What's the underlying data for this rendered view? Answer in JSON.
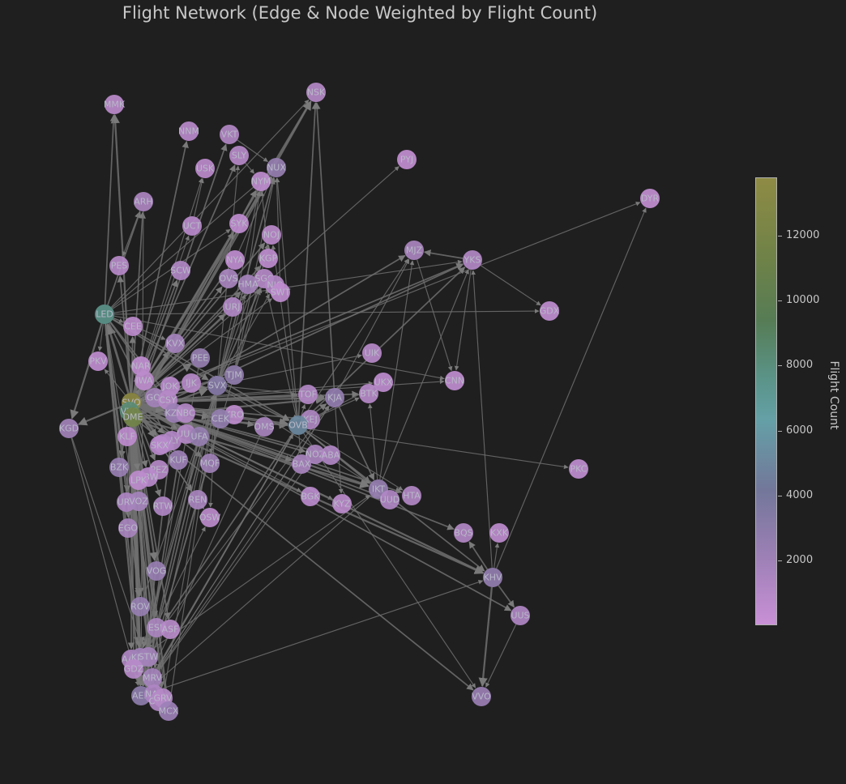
{
  "title": "Flight Network (Edge & Node Weighted by Flight Count)",
  "colorbar": {
    "label": "Flight Count",
    "ticks": [
      "2000",
      "4000",
      "6000",
      "8000",
      "10000",
      "12000"
    ],
    "colors": [
      "#c990d6",
      "#9d80b6",
      "#73779a",
      "#64a0a6",
      "#5a9285",
      "#567c55",
      "#6f8248",
      "#8e8b44"
    ]
  },
  "chart_data": {
    "type": "network",
    "title": "Flight Network (Edge & Node Weighted by Flight Count)",
    "colorbar_label": "Flight Count",
    "colorbar_range": [
      0,
      13800
    ],
    "nodes": [
      {
        "id": "MMK",
        "flights": 600
      },
      {
        "id": "NSK",
        "flights": 900
      },
      {
        "id": "NNM",
        "flights": 700
      },
      {
        "id": "VKT",
        "flights": 1000
      },
      {
        "id": "SLY",
        "flights": 800
      },
      {
        "id": "NUX",
        "flights": 2300
      },
      {
        "id": "USK",
        "flights": 600
      },
      {
        "id": "NYM",
        "flights": 500
      },
      {
        "id": "PYJ",
        "flights": 300
      },
      {
        "id": "DYR",
        "flights": 300
      },
      {
        "id": "ARH",
        "flights": 1300
      },
      {
        "id": "UCT",
        "flights": 700
      },
      {
        "id": "SYK",
        "flights": 400
      },
      {
        "id": "NOJ",
        "flights": 600
      },
      {
        "id": "MJZ",
        "flights": 1400
      },
      {
        "id": "YKS",
        "flights": 1000
      },
      {
        "id": "PES",
        "flights": 800
      },
      {
        "id": "KGP",
        "flights": 500
      },
      {
        "id": "NYA",
        "flights": 400
      },
      {
        "id": "SCW",
        "flights": 1100
      },
      {
        "id": "OVS",
        "flights": 1500
      },
      {
        "id": "SGC",
        "flights": 900
      },
      {
        "id": "HMA",
        "flights": 1600
      },
      {
        "id": "NJC",
        "flights": 1000
      },
      {
        "id": "SWT",
        "flights": 500
      },
      {
        "id": "URJ",
        "flights": 1100
      },
      {
        "id": "GDX",
        "flights": 400
      },
      {
        "id": "LED",
        "flights": 7500
      },
      {
        "id": "CEE",
        "flights": 600
      },
      {
        "id": "KVX",
        "flights": 1600
      },
      {
        "id": "UIK",
        "flights": 800
      },
      {
        "id": "PEE",
        "flights": 2300
      },
      {
        "id": "PKV",
        "flights": 400
      },
      {
        "id": "NAR",
        "flights": 400
      },
      {
        "id": "TJM",
        "flights": 2600
      },
      {
        "id": "UKX",
        "flights": 500
      },
      {
        "id": "CNN",
        "flights": 400
      },
      {
        "id": "IWA",
        "flights": 600
      },
      {
        "id": "JOK",
        "flights": 700
      },
      {
        "id": "IJK",
        "flights": 900
      },
      {
        "id": "SVX",
        "flights": 3000
      },
      {
        "id": "TOF",
        "flights": 1000
      },
      {
        "id": "KJA",
        "flights": 2400
      },
      {
        "id": "BTK",
        "flights": 800
      },
      {
        "id": "SVO",
        "flights": 13800
      },
      {
        "id": "GOJ",
        "flights": 1700
      },
      {
        "id": "CSY",
        "flights": 900
      },
      {
        "id": "VKO",
        "flights": 8500
      },
      {
        "id": "DME",
        "flights": 12000
      },
      {
        "id": "KZN",
        "flights": 2000
      },
      {
        "id": "NBC",
        "flights": 1000
      },
      {
        "id": "KRO",
        "flights": 600
      },
      {
        "id": "KEJ",
        "flights": 1300
      },
      {
        "id": "CEK",
        "flights": 2500
      },
      {
        "id": "OMS",
        "flights": 1500
      },
      {
        "id": "OVB",
        "flights": 4800
      },
      {
        "id": "KGD",
        "flights": 1700
      },
      {
        "id": "UUA",
        "flights": 1000
      },
      {
        "id": "UFA",
        "flights": 2300
      },
      {
        "id": "ULY",
        "flights": 1000
      },
      {
        "id": "ULV",
        "flights": 1100
      },
      {
        "id": "KLF",
        "flights": 500
      },
      {
        "id": "SKX",
        "flights": 700
      },
      {
        "id": "NOZ",
        "flights": 1400
      },
      {
        "id": "ABA",
        "flights": 1100
      },
      {
        "id": "KUF",
        "flights": 2000
      },
      {
        "id": "MQF",
        "flights": 1900
      },
      {
        "id": "BAX",
        "flights": 1500
      },
      {
        "id": "PKC",
        "flights": 400
      },
      {
        "id": "BZK",
        "flights": 2200
      },
      {
        "id": "PEZ",
        "flights": 900
      },
      {
        "id": "TBW",
        "flights": 700
      },
      {
        "id": "LPK",
        "flights": 600
      },
      {
        "id": "IKT",
        "flights": 2300
      },
      {
        "id": "HTA",
        "flights": 1000
      },
      {
        "id": "URS",
        "flights": 1200
      },
      {
        "id": "VOZ",
        "flights": 1600
      },
      {
        "id": "BGK",
        "flights": 700
      },
      {
        "id": "KYZ",
        "flights": 600
      },
      {
        "id": "UUD",
        "flights": 1100
      },
      {
        "id": "RTW",
        "flights": 1100
      },
      {
        "id": "REN",
        "flights": 1500
      },
      {
        "id": "OSW",
        "flights": 600
      },
      {
        "id": "EGO",
        "flights": 1500
      },
      {
        "id": "BQS",
        "flights": 1000
      },
      {
        "id": "KXK",
        "flights": 500
      },
      {
        "id": "KHV",
        "flights": 2400
      },
      {
        "id": "VOG",
        "flights": 2200
      },
      {
        "id": "UUS",
        "flights": 1100
      },
      {
        "id": "ROV",
        "flights": 2300
      },
      {
        "id": "ESL",
        "flights": 1400
      },
      {
        "id": "ASF",
        "flights": 800
      },
      {
        "id": "AAQ",
        "flights": 1200
      },
      {
        "id": "KRR",
        "flights": 1800
      },
      {
        "id": "STW",
        "flights": 1700
      },
      {
        "id": "GDZ",
        "flights": 800
      },
      {
        "id": "MRV",
        "flights": 1600
      },
      {
        "id": "AER",
        "flights": 2700
      },
      {
        "id": "NAL",
        "flights": 1200
      },
      {
        "id": "OGZ",
        "flights": 1100
      },
      {
        "id": "GRV",
        "flights": 900
      },
      {
        "id": "MCX",
        "flights": 2000
      },
      {
        "id": "VVO",
        "flights": 2100
      }
    ],
    "edges": [
      [
        "SVO",
        "MMK",
        3
      ],
      [
        "SVO",
        "NSK",
        3
      ],
      [
        "DME",
        "NSK",
        3
      ],
      [
        "SVO",
        "NNM",
        2
      ],
      [
        "LED",
        "ARH",
        2
      ],
      [
        "SVO",
        "ARH",
        2
      ],
      [
        "DME",
        "VKT",
        2
      ],
      [
        "SVO",
        "SLY",
        2
      ],
      [
        "DME",
        "NUX",
        2
      ],
      [
        "SVO",
        "NUX",
        2
      ],
      [
        "SVO",
        "USK",
        1
      ],
      [
        "DME",
        "NYM",
        2
      ],
      [
        "SVO",
        "PYJ",
        1
      ],
      [
        "SVO",
        "DYR",
        1
      ],
      [
        "SVO",
        "UCT",
        1
      ],
      [
        "SVO",
        "SYK",
        2
      ],
      [
        "SVO",
        "NOJ",
        2
      ],
      [
        "DME",
        "MJZ",
        2
      ],
      [
        "SVO",
        "YKS",
        2
      ],
      [
        "DME",
        "YKS",
        2
      ],
      [
        "LED",
        "GDX",
        1
      ],
      [
        "SVO",
        "KGP",
        2
      ],
      [
        "SVO",
        "NYA",
        2
      ],
      [
        "SVO",
        "SGC",
        2
      ],
      [
        "SVO",
        "HMA",
        2
      ],
      [
        "SVO",
        "SWT",
        1
      ],
      [
        "SVO",
        "URJ",
        2
      ],
      [
        "SVO",
        "OVS",
        2
      ],
      [
        "SVO",
        "SCW",
        2
      ],
      [
        "SVO",
        "KVX",
        2
      ],
      [
        "SVO",
        "PEE",
        3
      ],
      [
        "SVO",
        "TJM",
        3
      ],
      [
        "SVO",
        "SVX",
        3
      ],
      [
        "DME",
        "SVX",
        3
      ],
      [
        "SVO",
        "TOF",
        2
      ],
      [
        "SVO",
        "KJA",
        3
      ],
      [
        "DME",
        "KJA",
        3
      ],
      [
        "SVO",
        "UIK",
        1
      ],
      [
        "SVO",
        "UKX",
        1
      ],
      [
        "SVO",
        "CNN",
        1
      ],
      [
        "SVO",
        "OVB",
        3
      ],
      [
        "DME",
        "OVB",
        3
      ],
      [
        "SVO",
        "OMS",
        2
      ],
      [
        "SVO",
        "KEJ",
        2
      ],
      [
        "SVO",
        "CEK",
        3
      ],
      [
        "SVO",
        "NOZ",
        2
      ],
      [
        "SVO",
        "ABA",
        2
      ],
      [
        "SVO",
        "BAX",
        2
      ],
      [
        "SVO",
        "BGK",
        1
      ],
      [
        "SVO",
        "KYZ",
        1
      ],
      [
        "SVO",
        "IKT",
        3
      ],
      [
        "DME",
        "IKT",
        3
      ],
      [
        "SVO",
        "UUD",
        2
      ],
      [
        "SVO",
        "HTA",
        2
      ],
      [
        "SVO",
        "KHV",
        3
      ],
      [
        "DME",
        "KHV",
        3
      ],
      [
        "SVO",
        "UUS",
        2
      ],
      [
        "SVO",
        "BQS",
        2
      ],
      [
        "SVO",
        "PKC",
        1
      ],
      [
        "DME",
        "VVO",
        2
      ],
      [
        "SVO",
        "AER",
        4
      ],
      [
        "VKO",
        "AER",
        4
      ],
      [
        "DME",
        "AER",
        4
      ],
      [
        "SVO",
        "KRR",
        4
      ],
      [
        "VKO",
        "KRR",
        3
      ],
      [
        "SVO",
        "MRV",
        3
      ],
      [
        "SVO",
        "ROV",
        3
      ],
      [
        "SVO",
        "VOG",
        3
      ],
      [
        "SVO",
        "EGO",
        2
      ],
      [
        "SVO",
        "STW",
        3
      ],
      [
        "SVO",
        "MCX",
        3
      ],
      [
        "SVO",
        "GDZ",
        2
      ],
      [
        "SVO",
        "AAQ",
        2
      ],
      [
        "SVO",
        "NAL",
        2
      ],
      [
        "SVO",
        "OGZ",
        2
      ],
      [
        "SVO",
        "GRV",
        2
      ],
      [
        "SVO",
        "ESL",
        2
      ],
      [
        "SVO",
        "ASF",
        2
      ],
      [
        "SVO",
        "URS",
        2
      ],
      [
        "SVO",
        "VOZ",
        2
      ],
      [
        "SVO",
        "LPK",
        2
      ],
      [
        "SVO",
        "TBW",
        2
      ],
      [
        "SVO",
        "BZK",
        2
      ],
      [
        "SVO",
        "PEZ",
        2
      ],
      [
        "SVO",
        "KUF",
        3
      ],
      [
        "SVO",
        "UFA",
        3
      ],
      [
        "SVO",
        "KZN",
        3
      ],
      [
        "SVO",
        "REN",
        2
      ],
      [
        "SVO",
        "OSW",
        1
      ],
      [
        "SVO",
        "MQF",
        2
      ],
      [
        "SVO",
        "RTW",
        2
      ],
      [
        "SVO",
        "KGD",
        3
      ],
      [
        "SVO",
        "PKV",
        1
      ],
      [
        "SVO",
        "LED",
        4
      ],
      [
        "SVO",
        "PES",
        2
      ],
      [
        "SVO",
        "CEE",
        2
      ],
      [
        "SVO",
        "IJK",
        2
      ],
      [
        "SVO",
        "JOK",
        2
      ],
      [
        "SVO",
        "NBC",
        2
      ],
      [
        "SVO",
        "GOJ",
        3
      ],
      [
        "SVO",
        "CSY",
        2
      ],
      [
        "SVO",
        "ULY",
        2
      ],
      [
        "SVO",
        "ULV",
        2
      ],
      [
        "SVO",
        "UUA",
        2
      ],
      [
        "SVO",
        "SKX",
        2
      ],
      [
        "SVO",
        "KLF",
        1
      ],
      [
        "SVO",
        "IWA",
        1
      ],
      [
        "SVO",
        "NAR",
        2
      ],
      [
        "SVO",
        "KRO",
        2
      ],
      [
        "SVO",
        "BTK",
        2
      ],
      [
        "LED",
        "KGD",
        3
      ],
      [
        "LED",
        "AER",
        3
      ],
      [
        "LED",
        "KRR",
        2
      ],
      [
        "LED",
        "MRV",
        2
      ],
      [
        "LED",
        "SVX",
        2
      ],
      [
        "LED",
        "OVB",
        2
      ],
      [
        "LED",
        "MMK",
        2
      ],
      [
        "LED",
        "NSK",
        1
      ],
      [
        "LED",
        "SYK",
        1
      ],
      [
        "LED",
        "NUX",
        1
      ],
      [
        "LED",
        "UFA",
        2
      ],
      [
        "LED",
        "KZN",
        2
      ],
      [
        "LED",
        "KUF",
        2
      ],
      [
        "LED",
        "ROV",
        2
      ],
      [
        "LED",
        "MCX",
        1
      ],
      [
        "LED",
        "CEE",
        1
      ],
      [
        "LED",
        "PKV",
        1
      ],
      [
        "LED",
        "KVX",
        1
      ],
      [
        "LED",
        "YKS",
        1
      ],
      [
        "LED",
        "CNN",
        1
      ],
      [
        "OVB",
        "KJA",
        2
      ],
      [
        "OVB",
        "IKT",
        2
      ],
      [
        "OVB",
        "KHV",
        2
      ],
      [
        "OVB",
        "VVO",
        1
      ],
      [
        "OVB",
        "YKS",
        2
      ],
      [
        "OVB",
        "MJZ",
        1
      ],
      [
        "OVB",
        "NSK",
        2
      ],
      [
        "OVB",
        "AER",
        2
      ],
      [
        "OVB",
        "KRR",
        2
      ],
      [
        "OVB",
        "MRV",
        1
      ],
      [
        "OVB",
        "BAX",
        1
      ],
      [
        "OVB",
        "HTA",
        1
      ],
      [
        "OVB",
        "UUD",
        1
      ],
      [
        "OVB",
        "BTK",
        1
      ],
      [
        "OVB",
        "UKX",
        1
      ],
      [
        "OVB",
        "SGC",
        1
      ],
      [
        "OVB",
        "NOJ",
        1
      ],
      [
        "OVB",
        "NUX",
        1
      ],
      [
        "OVB",
        "TOF",
        1
      ],
      [
        "OVB",
        "KEJ",
        1
      ],
      [
        "SVX",
        "AER",
        2
      ],
      [
        "SVX",
        "KRR",
        2
      ],
      [
        "SVX",
        "MRV",
        1
      ],
      [
        "SVX",
        "SGC",
        2
      ],
      [
        "SVX",
        "NUX",
        2
      ],
      [
        "SVX",
        "NYM",
        1
      ],
      [
        "SVX",
        "HMA",
        1
      ],
      [
        "SVX",
        "NJC",
        1
      ],
      [
        "SVX",
        "SLY",
        1
      ],
      [
        "SVX",
        "NOJ",
        1
      ],
      [
        "SVX",
        "OVB",
        2
      ],
      [
        "SVX",
        "IKT",
        1
      ],
      [
        "SVX",
        "KJA",
        1
      ],
      [
        "SVX",
        "MQF",
        1
      ],
      [
        "SVX",
        "OSW",
        1
      ],
      [
        "KJA",
        "IKT",
        2
      ],
      [
        "KJA",
        "MJZ",
        1
      ],
      [
        "KJA",
        "NSK",
        2
      ],
      [
        "KJA",
        "KYZ",
        1
      ],
      [
        "KJA",
        "AER",
        1
      ],
      [
        "IKT",
        "MJZ",
        1
      ],
      [
        "IKT",
        "YKS",
        1
      ],
      [
        "IKT",
        "UUD",
        1
      ],
      [
        "IKT",
        "BTK",
        1
      ],
      [
        "IKT",
        "AER",
        1
      ],
      [
        "KHV",
        "VVO",
        3
      ],
      [
        "KHV",
        "UUS",
        2
      ],
      [
        "KHV",
        "BQS",
        2
      ],
      [
        "KHV",
        "YKS",
        1
      ],
      [
        "KHV",
        "DYR",
        1
      ],
      [
        "KHV",
        "KXK",
        1
      ],
      [
        "YKS",
        "MJZ",
        2
      ],
      [
        "YKS",
        "CNN",
        1
      ],
      [
        "YKS",
        "GDX",
        1
      ],
      [
        "MJZ",
        "CNN",
        1
      ],
      [
        "KZN",
        "AER",
        2
      ],
      [
        "UFA",
        "AER",
        2
      ],
      [
        "UFA",
        "KRR",
        1
      ],
      [
        "KUF",
        "AER",
        2
      ],
      [
        "PEE",
        "AER",
        1
      ],
      [
        "TJM",
        "SGC",
        1
      ],
      [
        "TJM",
        "NYM",
        1
      ],
      [
        "TJM",
        "NOJ",
        1
      ],
      [
        "TJM",
        "NUX",
        1
      ],
      [
        "TJM",
        "AER",
        1
      ],
      [
        "NOZ",
        "AER",
        1
      ],
      [
        "CEK",
        "AER",
        1
      ],
      [
        "OMS",
        "AER",
        1
      ],
      [
        "ARH",
        "AER",
        1
      ],
      [
        "ARH",
        "PES",
        1
      ],
      [
        "KRR",
        "MCX",
        1
      ],
      [
        "KRR",
        "OSW",
        1
      ],
      [
        "MRV",
        "OVB",
        1
      ],
      [
        "ROV",
        "SVX",
        1
      ],
      [
        "KGD",
        "AER",
        1
      ],
      [
        "KGD",
        "MRV",
        1
      ],
      [
        "BAX",
        "AER",
        1
      ],
      [
        "UUS",
        "VVO",
        1
      ],
      [
        "AER",
        "KJA",
        1
      ],
      [
        "KRR",
        "KJA",
        1
      ],
      [
        "AER",
        "KHV",
        1
      ],
      [
        "KRR",
        "IKT",
        1
      ],
      [
        "MCX",
        "SVX",
        1
      ],
      [
        "GRV",
        "SVX",
        1
      ],
      [
        "UCT",
        "USK",
        1
      ],
      [
        "VKT",
        "NUX",
        1
      ],
      [
        "SLY",
        "NYM",
        1
      ],
      [
        "SWT",
        "NUX",
        1
      ],
      [
        "KGP",
        "NYM",
        1
      ],
      [
        "NYA",
        "NUX",
        1
      ]
    ]
  }
}
